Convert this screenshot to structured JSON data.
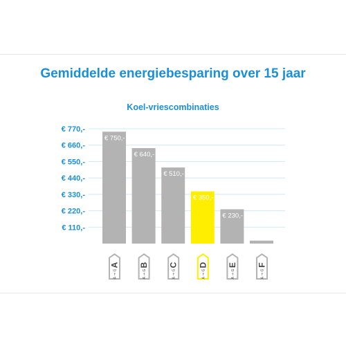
{
  "chart_data": {
    "type": "bar",
    "title": "Gemiddelde energiebesparing over 15 jaar",
    "subtitle": "Koel-vriescombinaties",
    "categories": [
      "A",
      "B",
      "C",
      "D",
      "E",
      "F"
    ],
    "values": [
      750,
      640,
      510,
      350,
      230,
      20
    ],
    "value_labels": [
      "€ 750,-",
      "€ 640,-",
      "€ 510,-",
      "€ 350,-",
      "€ 230,-",
      ""
    ],
    "y_ticks": [
      110,
      220,
      330,
      440,
      550,
      660,
      770
    ],
    "y_tick_labels": [
      "€ 110,-",
      "€ 220,-",
      "€ 330,-",
      "€ 440,-",
      "€ 550,-",
      "€ 660,-",
      "€ 770,-"
    ],
    "ylim": [
      0,
      770
    ],
    "grid": true,
    "legend": "none",
    "colors": {
      "bar_default": "#b3b3b3",
      "bar_highlight": "#ffee00",
      "label_text_default": "#ffffff",
      "label_text_highlight": "#ffffff",
      "axis_text": "#1a8fd9",
      "grid": "#cfe8f3",
      "tag_fill_default": "#b3b3b3",
      "tag_fill_highlight": "#ffee00"
    },
    "highlight_category": "D",
    "category_tag_sub": "A → G"
  }
}
